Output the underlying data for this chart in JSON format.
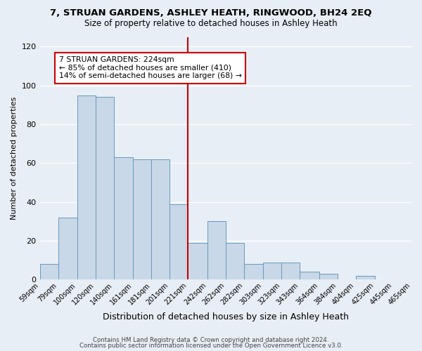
{
  "title": "7, STRUAN GARDENS, ASHLEY HEATH, RINGWOOD, BH24 2EQ",
  "subtitle": "Size of property relative to detached houses in Ashley Heath",
  "xlabel": "Distribution of detached houses by size in Ashley Heath",
  "ylabel": "Number of detached properties",
  "bar_color": "#c8d8e8",
  "bar_edge_color": "#6699bb",
  "background_color": "#e8eef5",
  "grid_color": "#ffffff",
  "bins": [
    59,
    79,
    100,
    120,
    140,
    161,
    181,
    201,
    221,
    242,
    262,
    282,
    303,
    323,
    343,
    364,
    384,
    404,
    425,
    445,
    465
  ],
  "bin_labels": [
    "59sqm",
    "79sqm",
    "100sqm",
    "120sqm",
    "140sqm",
    "161sqm",
    "181sqm",
    "201sqm",
    "221sqm",
    "242sqm",
    "262sqm",
    "282sqm",
    "303sqm",
    "323sqm",
    "343sqm",
    "364sqm",
    "384sqm",
    "404sqm",
    "425sqm",
    "445sqm",
    "465sqm"
  ],
  "values": [
    8,
    32,
    95,
    94,
    63,
    62,
    62,
    39,
    19,
    30,
    19,
    8,
    9,
    9,
    4,
    3,
    0,
    2,
    0,
    0
  ],
  "vline_x": 221,
  "vline_color": "#cc0000",
  "annotation_text": "7 STRUAN GARDENS: 224sqm\n← 85% of detached houses are smaller (410)\n14% of semi-detached houses are larger (68) →",
  "annotation_box_color": "#ffffff",
  "annotation_box_edge": "#cc0000",
  "ylim": [
    0,
    125
  ],
  "yticks": [
    0,
    20,
    40,
    60,
    80,
    100,
    120
  ],
  "footer1": "Contains HM Land Registry data © Crown copyright and database right 2024.",
  "footer2": "Contains public sector information licensed under the Open Government Licence v3.0."
}
